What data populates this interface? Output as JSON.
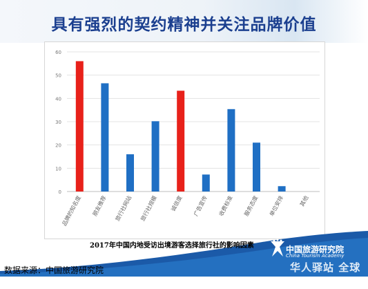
{
  "title": "具有强烈的契约精神并关注品牌价值",
  "caption": "2017年中国内地受访出境游客选择旅行社的影响因素",
  "source": "数据来源：中国旅游研究院",
  "logo": {
    "name_cn": "中国旅游研究院",
    "name_en": "China Tourism Academy"
  },
  "watermark": "华人驿站 全球通",
  "colors": {
    "highlight": "#e8211a",
    "bar": "#1f6fc4",
    "title": "#1b3f8f",
    "band": "#1b5aa8"
  },
  "chart_data": {
    "type": "bar",
    "categories": [
      "品牌的知名度",
      "朋友推荐",
      "旅行社网站",
      "旅行社规模",
      "诚信度",
      "广告宣传",
      "收费标准",
      "服务态度",
      "单位安排",
      "其他"
    ],
    "values": [
      56,
      46.5,
      16,
      30.2,
      43.3,
      7.3,
      35.4,
      21,
      2.3,
      0
    ],
    "highlight": [
      true,
      false,
      false,
      false,
      true,
      false,
      false,
      false,
      false,
      false
    ],
    "ylim": [
      0,
      60
    ],
    "yticks": [
      0,
      10,
      20,
      30,
      40,
      50,
      60
    ],
    "grid": true
  }
}
